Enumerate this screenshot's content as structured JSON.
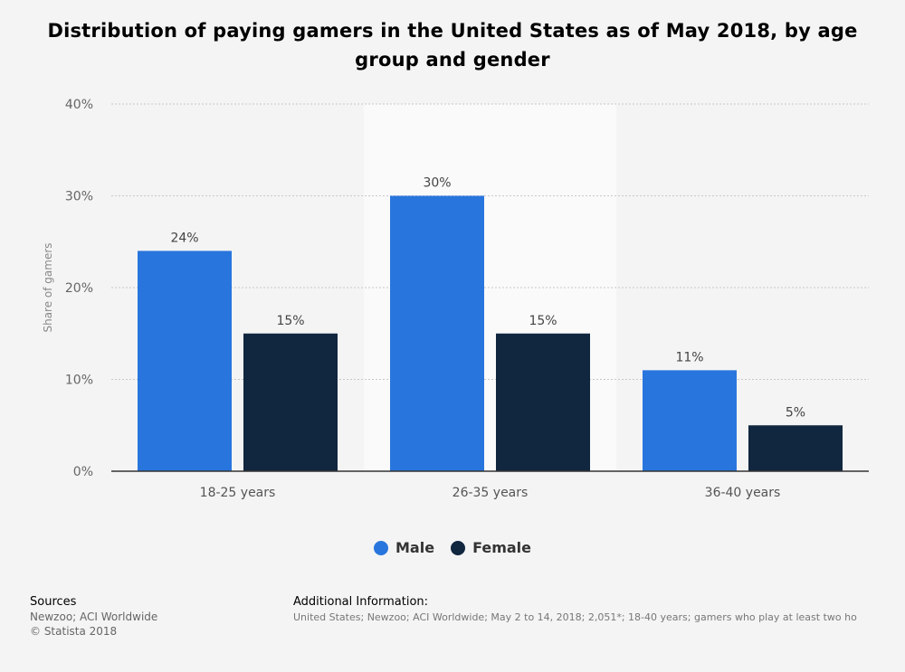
{
  "title": "Distribution of paying gamers in the United States as of May 2018, by age group and gender",
  "chart_data": {
    "type": "bar",
    "categories": [
      "18-25 years",
      "26-35 years",
      "36-40 years"
    ],
    "series": [
      {
        "name": "Male",
        "values": [
          24,
          30,
          11
        ],
        "color": "#2876dd"
      },
      {
        "name": "Female",
        "values": [
          15,
          15,
          5
        ],
        "color": "#11263f"
      }
    ],
    "data_labels": [
      [
        "24%",
        "30%",
        "11%"
      ],
      [
        "15%",
        "15%",
        "5%"
      ]
    ],
    "ylabel": "Share of gamers",
    "ylim": [
      0,
      40
    ],
    "yticks": [
      0,
      10,
      20,
      30,
      40
    ],
    "ytick_labels": [
      "0%",
      "10%",
      "20%",
      "30%",
      "40%"
    ],
    "grid": true,
    "legend_position": "bottom-center"
  },
  "legend": {
    "male": "Male",
    "female": "Female",
    "male_color": "#2876dd",
    "female_color": "#11263f"
  },
  "footer": {
    "sources_heading": "Sources",
    "sources_line1": "Newzoo; ACI Worldwide",
    "sources_line2": "© Statista 2018",
    "additional_heading": "Additional Information:",
    "additional_text": "United States; Newzoo; ACI Worldwide; May 2 to 14, 2018; 2,051*; 18-40 years; gamers who play at least two ho"
  }
}
